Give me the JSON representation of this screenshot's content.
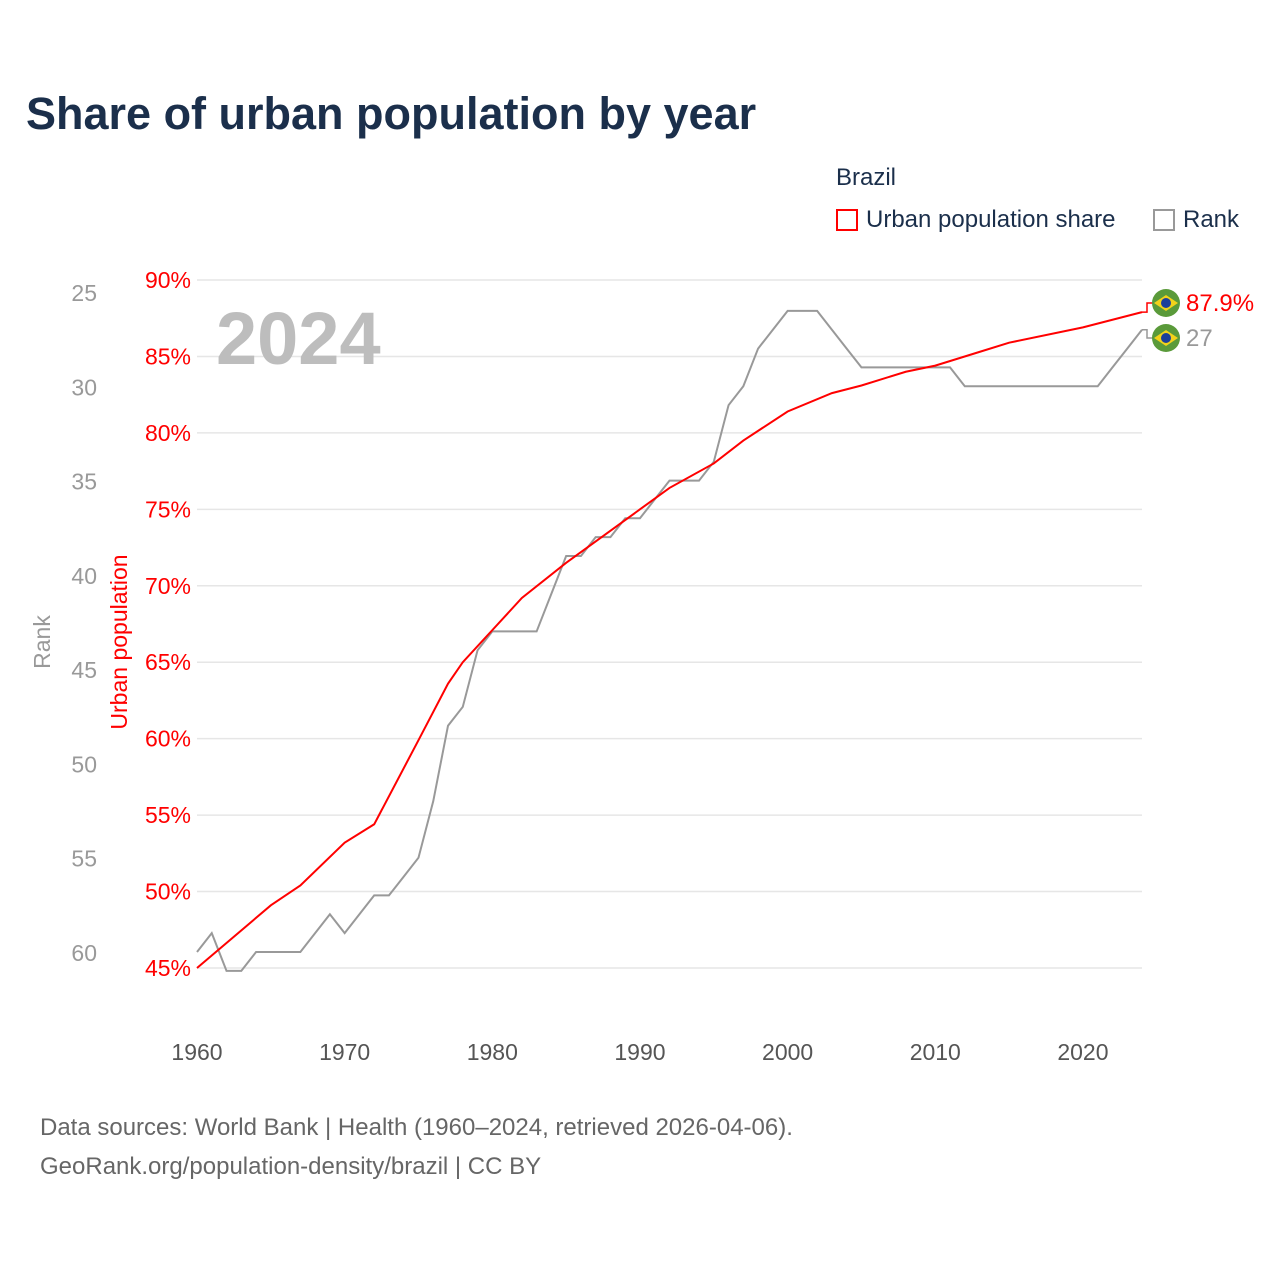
{
  "title": "Share of urban population by year",
  "legend": {
    "title": "Brazil",
    "items": [
      {
        "label": "Urban population share",
        "color": "#ff0000"
      },
      {
        "label": "Rank",
        "color": "#999999"
      }
    ]
  },
  "footer": {
    "line1": "Data sources: World Bank | Health (1960–2024, retrieved 2026-04-06).",
    "line2": "GeoRank.org/population-density/brazil | CC BY"
  },
  "chart_data": {
    "type": "line",
    "title": "Share of urban population by year",
    "year_label": "2024",
    "x_ticks": [
      1960,
      1970,
      1980,
      1990,
      2000,
      2010,
      2020
    ],
    "xlim": [
      1960,
      2024
    ],
    "y_left": {
      "label": "Urban population",
      "ticks": [
        "45%",
        "50%",
        "55%",
        "60%",
        "65%",
        "70%",
        "75%",
        "80%",
        "85%",
        "90%"
      ],
      "range": [
        45,
        90
      ],
      "color": "#ff0000"
    },
    "y_right_rank": {
      "label": "Rank",
      "ticks": [
        "25",
        "30",
        "35",
        "40",
        "45",
        "50",
        "55",
        "60"
      ],
      "range": [
        25,
        60
      ],
      "inverted": true,
      "color": "#999999"
    },
    "series": [
      {
        "name": "Urban population share",
        "axis": "left",
        "x": [
          1960,
          1965,
          1967,
          1970,
          1972,
          1975,
          1977,
          1978,
          1980,
          1982,
          1985,
          1990,
          1992,
          1995,
          1997,
          2000,
          2003,
          2005,
          2008,
          2010,
          2013,
          2015,
          2020,
          2024
        ],
        "y": [
          45.0,
          49.1,
          50.4,
          53.2,
          54.4,
          59.9,
          63.6,
          65.0,
          67.1,
          69.2,
          71.5,
          75.0,
          76.4,
          78.0,
          79.5,
          81.4,
          82.6,
          83.1,
          84.0,
          84.4,
          85.3,
          85.9,
          86.9,
          87.9
        ]
      },
      {
        "name": "Rank",
        "axis": "rank",
        "x": [
          1960,
          1961,
          1962,
          1963,
          1964,
          1965,
          1966,
          1967,
          1968,
          1969,
          1970,
          1971,
          1972,
          1973,
          1974,
          1975,
          1976,
          1977,
          1978,
          1979,
          1980,
          1981,
          1982,
          1983,
          1984,
          1985,
          1986,
          1987,
          1988,
          1989,
          1990,
          1991,
          1992,
          1993,
          1994,
          1995,
          1996,
          1997,
          1998,
          1999,
          2000,
          2001,
          2002,
          2003,
          2004,
          2005,
          2006,
          2007,
          2008,
          2009,
          2010,
          2011,
          2012,
          2013,
          2014,
          2015,
          2016,
          2017,
          2018,
          2019,
          2020,
          2021,
          2022,
          2023,
          2024
        ],
        "y": [
          60,
          59,
          61,
          61,
          60,
          60,
          60,
          60,
          59,
          58,
          59,
          58,
          57,
          57,
          56,
          55,
          52,
          48,
          47,
          44,
          43,
          43,
          43,
          43,
          41,
          39,
          39,
          38,
          38,
          37,
          37,
          36,
          35,
          35,
          35,
          34,
          31,
          30,
          28,
          27,
          26,
          26,
          26,
          27,
          28,
          29,
          29,
          29,
          29,
          29,
          29,
          29,
          30,
          30,
          30,
          30,
          30,
          30,
          30,
          30,
          30,
          30,
          29,
          28,
          27
        ]
      }
    ],
    "end_labels": {
      "share": "87.9%",
      "rank": "27"
    }
  }
}
